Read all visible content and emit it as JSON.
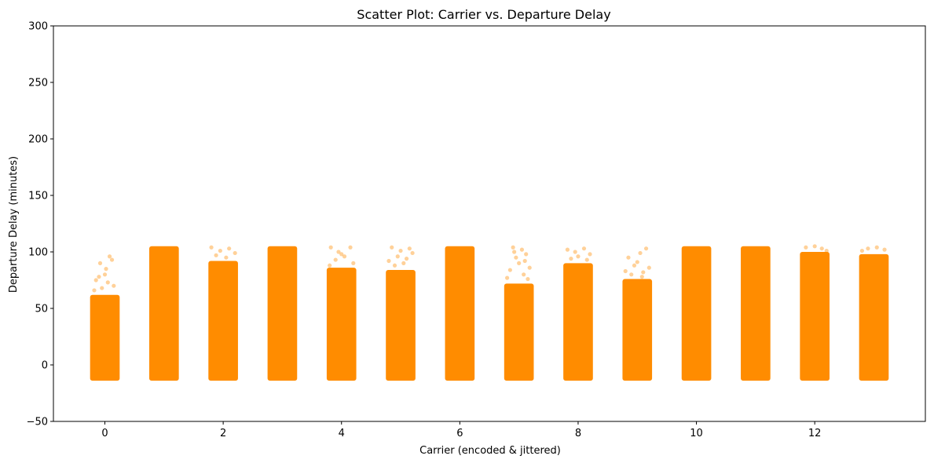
{
  "chart_data": {
    "type": "scatter",
    "title": "Scatter Plot: Carrier vs. Departure Delay",
    "xlabel": "Carrier (encoded & jittered)",
    "ylabel": "Departure Delay (minutes)",
    "xlim": [
      -0.87,
      13.87
    ],
    "ylim": [
      -50,
      300
    ],
    "xticks": [
      0,
      2,
      4,
      6,
      8,
      10,
      12
    ],
    "yticks": [
      -50,
      0,
      50,
      100,
      150,
      200,
      250,
      300
    ],
    "grid": false,
    "marker_color": "#ff8c00",
    "jitter_half_width": 0.25,
    "series": [
      {
        "clusters": [
          {
            "carrier": 0,
            "y_min": -14,
            "y_max": 62,
            "outliers": [
              [
                -0.15,
                75
              ],
              [
                -0.1,
                78
              ],
              [
                0.0,
                80
              ],
              [
                0.05,
                73
              ],
              [
                -0.05,
                68
              ],
              [
                0.02,
                85
              ],
              [
                -0.08,
                90
              ],
              [
                0.12,
                93
              ],
              [
                0.08,
                96
              ],
              [
                0.15,
                70
              ],
              [
                -0.18,
                66
              ]
            ]
          },
          {
            "carrier": 1,
            "y_min": -14,
            "y_max": 105,
            "outliers": []
          },
          {
            "carrier": 2,
            "y_min": -14,
            "y_max": 92,
            "outliers": [
              [
                -0.2,
                104
              ],
              [
                -0.05,
                101
              ],
              [
                0.1,
                103
              ],
              [
                0.2,
                99
              ],
              [
                -0.12,
                97
              ],
              [
                0.05,
                95
              ]
            ]
          },
          {
            "carrier": 3,
            "y_min": -14,
            "y_max": 105,
            "outliers": []
          },
          {
            "carrier": 4,
            "y_min": -14,
            "y_max": 86,
            "outliers": [
              [
                -0.18,
                104
              ],
              [
                -0.05,
                100
              ],
              [
                0.05,
                96
              ],
              [
                0.15,
                104
              ],
              [
                -0.1,
                93
              ],
              [
                0.2,
                90
              ],
              [
                0.0,
                98
              ],
              [
                -0.2,
                88
              ]
            ]
          },
          {
            "carrier": 5,
            "y_min": -14,
            "y_max": 84,
            "outliers": [
              [
                -0.15,
                104
              ],
              [
                0.0,
                101
              ],
              [
                0.15,
                103
              ],
              [
                0.2,
                99
              ],
              [
                -0.05,
                96
              ],
              [
                0.1,
                94
              ],
              [
                -0.2,
                92
              ],
              [
                0.05,
                90
              ],
              [
                -0.1,
                88
              ]
            ]
          },
          {
            "carrier": 6,
            "y_min": -14,
            "y_max": 105,
            "outliers": []
          },
          {
            "carrier": 7,
            "y_min": -14,
            "y_max": 72,
            "outliers": [
              [
                -0.1,
                104
              ],
              [
                0.05,
                102
              ],
              [
                0.12,
                98
              ],
              [
                -0.05,
                95
              ],
              [
                0.0,
                90
              ],
              [
                0.18,
                86
              ],
              [
                -0.15,
                84
              ],
              [
                0.08,
                80
              ],
              [
                -0.2,
                77
              ],
              [
                0.15,
                76
              ],
              [
                0.1,
                92
              ],
              [
                -0.08,
                100
              ]
            ]
          },
          {
            "carrier": 8,
            "y_min": -14,
            "y_max": 90,
            "outliers": [
              [
                -0.18,
                102
              ],
              [
                -0.05,
                100
              ],
              [
                0.1,
                103
              ],
              [
                0.2,
                98
              ],
              [
                0.0,
                96
              ],
              [
                -0.12,
                94
              ],
              [
                0.15,
                93
              ]
            ]
          },
          {
            "carrier": 9,
            "y_min": -14,
            "y_max": 76,
            "outliers": [
              [
                -0.15,
                95
              ],
              [
                0.05,
                99
              ],
              [
                0.15,
                103
              ],
              [
                0.0,
                91
              ],
              [
                -0.05,
                88
              ],
              [
                0.2,
                86
              ],
              [
                -0.2,
                83
              ],
              [
                0.1,
                82
              ],
              [
                -0.1,
                80
              ],
              [
                0.08,
                78
              ]
            ]
          },
          {
            "carrier": 10,
            "y_min": -14,
            "y_max": 105,
            "outliers": []
          },
          {
            "carrier": 11,
            "y_min": -14,
            "y_max": 105,
            "outliers": []
          },
          {
            "carrier": 12,
            "y_min": -14,
            "y_max": 100,
            "outliers": [
              [
                -0.15,
                104
              ],
              [
                0.0,
                105
              ],
              [
                0.12,
                103
              ],
              [
                0.2,
                101
              ]
            ]
          },
          {
            "carrier": 13,
            "y_min": -14,
            "y_max": 98,
            "outliers": [
              [
                -0.1,
                103
              ],
              [
                0.05,
                104
              ],
              [
                0.18,
                102
              ],
              [
                -0.2,
                101
              ]
            ]
          }
        ]
      }
    ]
  }
}
